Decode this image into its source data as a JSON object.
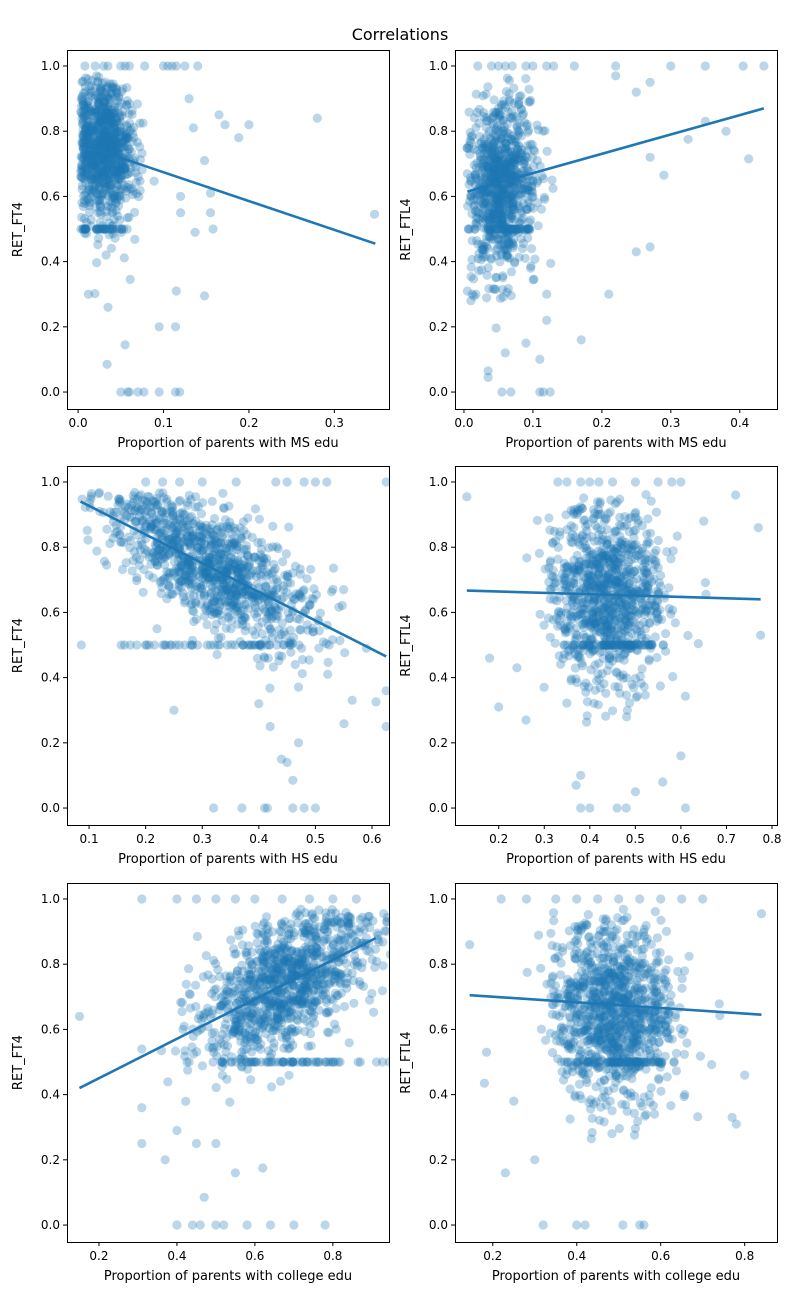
{
  "chart_data": {
    "title": "Correlations",
    "type": "scatter",
    "color": "#1f77b4",
    "marker_alpha": 0.3,
    "subplots": [
      {
        "xlabel": "Proportion of parents with MS edu",
        "ylabel": "RET_FT4",
        "xlim": [
          -0.013,
          0.364
        ],
        "ylim": [
          -0.052,
          1.049
        ],
        "xticks": [
          0.0,
          0.1,
          0.2,
          0.3
        ],
        "xtick_labels": [
          "0.0",
          "0.1",
          "0.2",
          "0.3"
        ],
        "yticks": [
          0.0,
          0.2,
          0.4,
          0.6,
          0.8,
          1.0
        ],
        "ytick_labels": [
          "0.0",
          "0.2",
          "0.4",
          "0.6",
          "0.8",
          "1.0"
        ],
        "fit_line": [
          [
            0.005,
            0.758
          ],
          [
            0.348,
            0.455
          ]
        ],
        "cluster": {
          "x_mean": 0.03,
          "x_sd": 0.018,
          "x_min": 0.003,
          "y_intercept": 0.76,
          "y_slope": -0.8,
          "y_sd": 0.11,
          "n": 900
        },
        "points": [
          [
            0.28,
            0.84
          ],
          [
            0.188,
            0.78
          ],
          [
            0.2,
            0.82
          ],
          [
            0.165,
            0.85
          ],
          [
            0.172,
            0.82
          ],
          [
            0.148,
            0.71
          ],
          [
            0.137,
            0.49
          ],
          [
            0.158,
            0.5
          ],
          [
            0.155,
            0.55
          ],
          [
            0.12,
            0.55
          ],
          [
            0.115,
            0.31
          ],
          [
            0.148,
            0.295
          ],
          [
            0.095,
            0.2
          ],
          [
            0.114,
            0.2
          ],
          [
            0.055,
            0.145
          ],
          [
            0.034,
            0.085
          ],
          [
            0.012,
            0.3
          ],
          [
            0.035,
            0.26
          ],
          [
            0.347,
            0.545
          ],
          [
            0.155,
            0.61
          ],
          [
            0.12,
            0.6
          ],
          [
            0.135,
            0.81
          ],
          [
            0.13,
            0.9
          ],
          [
            0.05,
            0
          ],
          [
            0.058,
            0
          ],
          [
            0.06,
            0
          ],
          [
            0.07,
            0
          ],
          [
            0.077,
            0
          ],
          [
            0.095,
            0
          ],
          [
            0.114,
            0
          ],
          [
            0.119,
            0
          ],
          [
            0.008,
            1
          ],
          [
            0.02,
            1
          ],
          [
            0.03,
            1
          ],
          [
            0.035,
            1
          ],
          [
            0.05,
            1
          ],
          [
            0.055,
            1
          ],
          [
            0.06,
            1
          ],
          [
            0.078,
            1
          ],
          [
            0.1,
            1
          ],
          [
            0.105,
            1
          ],
          [
            0.11,
            1
          ],
          [
            0.115,
            1
          ],
          [
            0.125,
            1
          ],
          [
            0.14,
            1
          ]
        ]
      },
      {
        "xlabel": "Proportion of parents with MS edu",
        "ylabel": "RET_FTL4",
        "xlim": [
          -0.013,
          0.454
        ],
        "ylim": [
          -0.052,
          1.049
        ],
        "xticks": [
          0.0,
          0.1,
          0.2,
          0.3,
          0.4
        ],
        "xtick_labels": [
          "0.0",
          "0.1",
          "0.2",
          "0.3",
          "0.4"
        ],
        "yticks": [
          0.0,
          0.2,
          0.4,
          0.6,
          0.8,
          1.0
        ],
        "ytick_labels": [
          "0.0",
          "0.2",
          "0.4",
          "0.6",
          "0.8",
          "1.0"
        ],
        "fit_line": [
          [
            0.005,
            0.615
          ],
          [
            0.435,
            0.87
          ]
        ],
        "cluster": {
          "x_mean": 0.055,
          "x_sd": 0.025,
          "x_min": 0.004,
          "y_intercept": 0.6,
          "y_slope": 0.6,
          "y_sd": 0.13,
          "n": 900
        },
        "points": [
          [
            0.413,
            0.715
          ],
          [
            0.38,
            0.8
          ],
          [
            0.35,
            0.83
          ],
          [
            0.325,
            0.775
          ],
          [
            0.29,
            0.665
          ],
          [
            0.27,
            0.72
          ],
          [
            0.27,
            0.445
          ],
          [
            0.25,
            0.43
          ],
          [
            0.21,
            0.3
          ],
          [
            0.17,
            0.16
          ],
          [
            0.12,
            0.3
          ],
          [
            0.12,
            0.22
          ],
          [
            0.11,
            0.1
          ],
          [
            0.09,
            0.15
          ],
          [
            0.035,
            0.065
          ],
          [
            0.035,
            0.045
          ],
          [
            0.005,
            0.31
          ],
          [
            0.01,
            0.28
          ],
          [
            0.06,
            0.12
          ],
          [
            0.27,
            0.95
          ],
          [
            0.25,
            0.92
          ],
          [
            0.22,
            0.97
          ],
          [
            0.055,
            0
          ],
          [
            0.068,
            0
          ],
          [
            0.11,
            0
          ],
          [
            0.115,
            0
          ],
          [
            0.125,
            0
          ],
          [
            0.02,
            1
          ],
          [
            0.04,
            1
          ],
          [
            0.05,
            1
          ],
          [
            0.06,
            1
          ],
          [
            0.07,
            1
          ],
          [
            0.09,
            1
          ],
          [
            0.1,
            1
          ],
          [
            0.12,
            1
          ],
          [
            0.13,
            1
          ],
          [
            0.16,
            1
          ],
          [
            0.22,
            1
          ],
          [
            0.3,
            1
          ],
          [
            0.35,
            1
          ],
          [
            0.405,
            1
          ],
          [
            0.435,
            1
          ]
        ]
      },
      {
        "xlabel": "Proportion of parents with HS edu",
        "ylabel": "RET_FT4",
        "xlim": [
          0.061,
          0.63
        ],
        "ylim": [
          -0.052,
          1.049
        ],
        "xticks": [
          0.1,
          0.2,
          0.3,
          0.4,
          0.5,
          0.6
        ],
        "xtick_labels": [
          "0.1",
          "0.2",
          "0.3",
          "0.4",
          "0.5",
          "0.6"
        ],
        "yticks": [
          0.0,
          0.2,
          0.4,
          0.6,
          0.8,
          1.0
        ],
        "ytick_labels": [
          "0.0",
          "0.2",
          "0.4",
          "0.6",
          "0.8",
          "1.0"
        ],
        "fit_line": [
          [
            0.085,
            0.94
          ],
          [
            0.625,
            0.465
          ]
        ],
        "cluster": {
          "x_mean": 0.32,
          "x_sd": 0.09,
          "x_min": 0.085,
          "y_intercept": 1.015,
          "y_slope": -0.88,
          "y_sd": 0.09,
          "n": 1100
        },
        "points": [
          [
            0.625,
            0.36
          ],
          [
            0.625,
            0.25
          ],
          [
            0.59,
            0.49
          ],
          [
            0.55,
            0.67
          ],
          [
            0.45,
            0.14
          ],
          [
            0.44,
            0.15
          ],
          [
            0.46,
            0.085
          ],
          [
            0.47,
            0.2
          ],
          [
            0.42,
            0.25
          ],
          [
            0.25,
            0.3
          ],
          [
            0.4,
            0.32
          ],
          [
            0.22,
            0.55
          ],
          [
            0.32,
            0
          ],
          [
            0.37,
            0
          ],
          [
            0.41,
            0
          ],
          [
            0.415,
            0
          ],
          [
            0.46,
            0
          ],
          [
            0.48,
            0
          ],
          [
            0.5,
            0
          ],
          [
            0.2,
            1
          ],
          [
            0.23,
            1
          ],
          [
            0.26,
            1
          ],
          [
            0.3,
            1
          ],
          [
            0.36,
            1
          ],
          [
            0.43,
            1
          ],
          [
            0.45,
            1
          ],
          [
            0.48,
            1
          ],
          [
            0.5,
            1
          ],
          [
            0.52,
            1
          ],
          [
            0.625,
            1
          ]
        ]
      },
      {
        "xlabel": "Proportion of parents with HS edu",
        "ylabel": "RET_FTL4",
        "xlim": [
          0.104,
          0.811
        ],
        "ylim": [
          -0.052,
          1.049
        ],
        "xticks": [
          0.2,
          0.3,
          0.4,
          0.5,
          0.6,
          0.7,
          0.8
        ],
        "xtick_labels": [
          "0.2",
          "0.3",
          "0.4",
          "0.5",
          "0.6",
          "0.7",
          "0.8"
        ],
        "yticks": [
          0.0,
          0.2,
          0.4,
          0.6,
          0.8,
          1.0
        ],
        "ytick_labels": [
          "0.0",
          "0.2",
          "0.4",
          "0.6",
          "0.8",
          "1.0"
        ],
        "fit_line": [
          [
            0.13,
            0.667
          ],
          [
            0.775,
            0.64
          ]
        ],
        "cluster": {
          "x_mean": 0.44,
          "x_sd": 0.06,
          "x_min": 0.15,
          "y_intercept": 0.67,
          "y_slope": -0.04,
          "y_sd": 0.14,
          "n": 1000
        },
        "points": [
          [
            0.13,
            0.955
          ],
          [
            0.18,
            0.46
          ],
          [
            0.2,
            0.31
          ],
          [
            0.26,
            0.27
          ],
          [
            0.24,
            0.43
          ],
          [
            0.775,
            0.53
          ],
          [
            0.77,
            0.86
          ],
          [
            0.72,
            0.96
          ],
          [
            0.65,
            0.88
          ],
          [
            0.37,
            0.07
          ],
          [
            0.38,
            0.1
          ],
          [
            0.5,
            0.05
          ],
          [
            0.56,
            0.08
          ],
          [
            0.6,
            0.16
          ],
          [
            0.61,
            0
          ],
          [
            0.48,
            0
          ],
          [
            0.46,
            0
          ],
          [
            0.4,
            0
          ],
          [
            0.38,
            0
          ],
          [
            0.33,
            1
          ],
          [
            0.35,
            1
          ],
          [
            0.38,
            1
          ],
          [
            0.4,
            1
          ],
          [
            0.42,
            1
          ],
          [
            0.45,
            1
          ],
          [
            0.5,
            1
          ],
          [
            0.55,
            1
          ],
          [
            0.58,
            1
          ],
          [
            0.6,
            1
          ]
        ]
      },
      {
        "xlabel": "Proportion of parents with college edu",
        "ylabel": "RET_FT4",
        "xlim": [
          0.118,
          0.944
        ],
        "ylim": [
          -0.052,
          1.049
        ],
        "xticks": [
          0.2,
          0.4,
          0.6,
          0.8
        ],
        "xtick_labels": [
          "0.2",
          "0.4",
          "0.6",
          "0.8"
        ],
        "yticks": [
          0.0,
          0.2,
          0.4,
          0.6,
          0.8,
          1.0
        ],
        "ytick_labels": [
          "0.0",
          "0.2",
          "0.4",
          "0.6",
          "0.8",
          "1.0"
        ],
        "fit_line": [
          [
            0.15,
            0.42
          ],
          [
            0.91,
            0.88
          ]
        ],
        "cluster": {
          "x_mean": 0.68,
          "x_sd": 0.11,
          "x_min": 0.35,
          "y_intercept": 0.329,
          "y_slope": 0.605,
          "y_sd": 0.1,
          "n": 1100
        },
        "points": [
          [
            0.15,
            0.64
          ],
          [
            0.31,
            0.54
          ],
          [
            0.31,
            0.36
          ],
          [
            0.31,
            0.25
          ],
          [
            0.37,
            0.2
          ],
          [
            0.4,
            0.29
          ],
          [
            0.45,
            0.25
          ],
          [
            0.47,
            0.085
          ],
          [
            0.5,
            0.25
          ],
          [
            0.55,
            0.16
          ],
          [
            0.62,
            0.175
          ],
          [
            0.9,
            0.71
          ],
          [
            0.4,
            0
          ],
          [
            0.44,
            0
          ],
          [
            0.46,
            0
          ],
          [
            0.5,
            0
          ],
          [
            0.52,
            0
          ],
          [
            0.58,
            0
          ],
          [
            0.64,
            0
          ],
          [
            0.7,
            0
          ],
          [
            0.78,
            0
          ],
          [
            0.31,
            1
          ],
          [
            0.4,
            1
          ],
          [
            0.45,
            1
          ],
          [
            0.5,
            1
          ],
          [
            0.55,
            1
          ],
          [
            0.6,
            1
          ],
          [
            0.67,
            1
          ],
          [
            0.74,
            1
          ],
          [
            0.8,
            1
          ],
          [
            0.86,
            1
          ]
        ]
      },
      {
        "xlabel": "Proportion of parents with college edu",
        "ylabel": "RET_FTL4",
        "xlim": [
          0.11,
          0.877
        ],
        "ylim": [
          -0.052,
          1.049
        ],
        "xticks": [
          0.2,
          0.4,
          0.6,
          0.8
        ],
        "xtick_labels": [
          "0.2",
          "0.4",
          "0.6",
          "0.8"
        ],
        "yticks": [
          0.0,
          0.2,
          0.4,
          0.6,
          0.8,
          1.0
        ],
        "ytick_labels": [
          "0.0",
          "0.2",
          "0.4",
          "0.6",
          "0.8",
          "1.0"
        ],
        "fit_line": [
          [
            0.145,
            0.705
          ],
          [
            0.84,
            0.645
          ]
        ],
        "cluster": {
          "x_mean": 0.49,
          "x_sd": 0.07,
          "x_min": 0.2,
          "y_intercept": 0.69,
          "y_slope": -0.08,
          "y_sd": 0.14,
          "n": 1100
        },
        "points": [
          [
            0.145,
            0.86
          ],
          [
            0.18,
            0.435
          ],
          [
            0.185,
            0.53
          ],
          [
            0.23,
            0.16
          ],
          [
            0.25,
            0.38
          ],
          [
            0.84,
            0.955
          ],
          [
            0.8,
            0.46
          ],
          [
            0.78,
            0.31
          ],
          [
            0.77,
            0.33
          ],
          [
            0.3,
            0.2
          ],
          [
            0.32,
            0
          ],
          [
            0.4,
            0
          ],
          [
            0.42,
            0
          ],
          [
            0.51,
            0
          ],
          [
            0.55,
            0
          ],
          [
            0.56,
            0
          ],
          [
            0.22,
            1
          ],
          [
            0.28,
            1
          ],
          [
            0.35,
            1
          ],
          [
            0.4,
            1
          ],
          [
            0.45,
            1
          ],
          [
            0.5,
            1
          ],
          [
            0.55,
            1
          ],
          [
            0.6,
            1
          ],
          [
            0.65,
            1
          ],
          [
            0.7,
            1
          ]
        ]
      }
    ]
  }
}
